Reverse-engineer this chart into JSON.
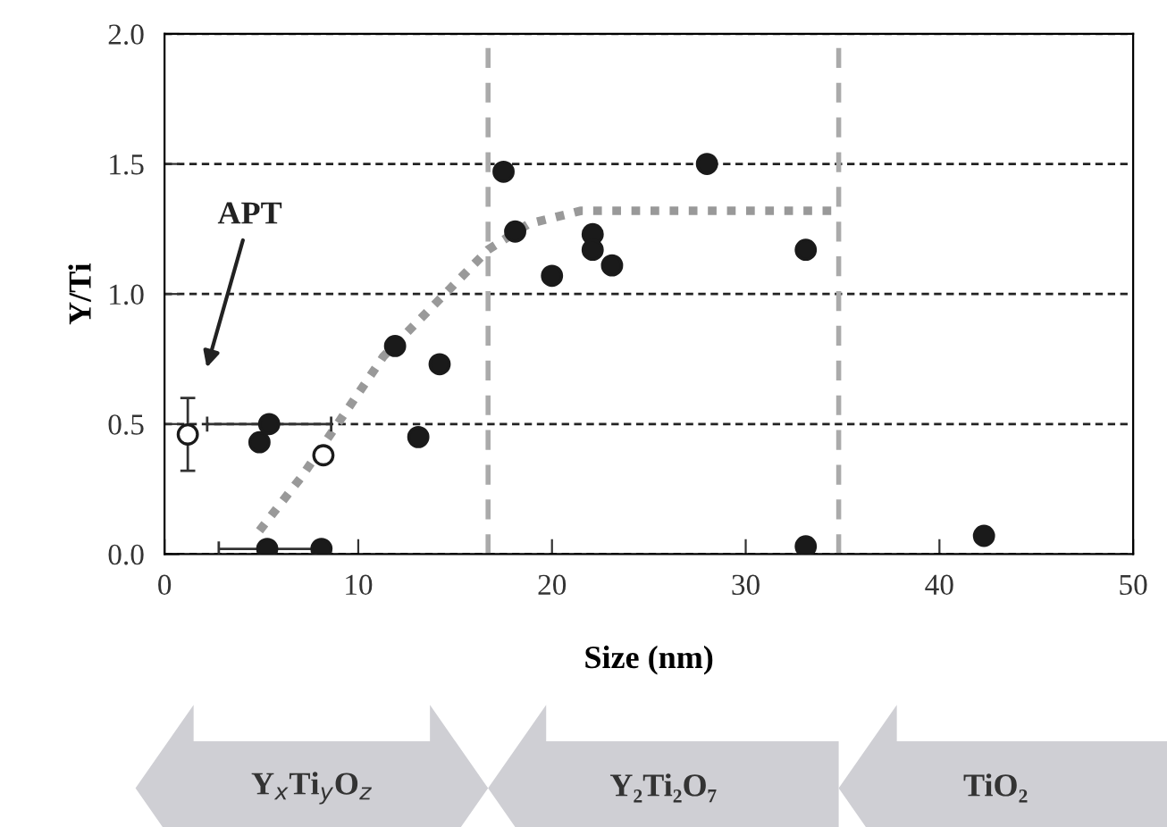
{
  "chart_data": {
    "type": "scatter",
    "xlabel": "Size (nm)",
    "ylabel": "Y/Ti",
    "xlim": [
      0,
      50
    ],
    "xticks": [
      0,
      10,
      20,
      30,
      40,
      50
    ],
    "ylim": [
      0,
      2.0
    ],
    "yticks": [
      {
        "value": 0,
        "label": "0.0"
      },
      {
        "value": 0.5,
        "label": "0.5"
      },
      {
        "value": 1.0,
        "label": "1.0"
      },
      {
        "value": 1.5,
        "label": "1.5"
      },
      {
        "value": 2.0,
        "label": "2.0"
      }
    ],
    "grid": "y",
    "series": [
      {
        "marker": "circle",
        "color": "#1a1a1a",
        "x": [
          4.9,
          5.4,
          5.3,
          8.1,
          11.9,
          14.2,
          13.1,
          17.5,
          18.1,
          20.0,
          22.1,
          22.1,
          23.1,
          28.0,
          33.1,
          33.1,
          42.3
        ],
        "values": [
          0.43,
          0.5,
          0.02,
          0.02,
          0.8,
          0.73,
          0.45,
          1.47,
          1.24,
          1.07,
          1.23,
          1.17,
          1.11,
          1.5,
          1.17,
          0.03,
          0.07
        ],
        "xerrors": [
          null,
          3.2,
          2.5,
          null,
          null,
          null,
          null,
          null,
          null,
          null,
          null,
          null,
          null,
          null,
          null,
          null,
          null
        ]
      },
      {
        "marker": "circle",
        "color": "#ffffff",
        "x": [
          1.2,
          8.2
        ],
        "values": [
          0.46,
          0.38
        ],
        "errors": [
          0.14,
          null
        ]
      },
      {
        "type": "line",
        "marker": "none",
        "color": "#999999",
        "line_style": "dotted",
        "x": [
          4.9,
          7.1,
          11.3,
          14.6,
          16.7,
          18.8,
          21.5,
          28.0,
          34.6
        ],
        "values": [
          0.09,
          0.3,
          0.76,
          1.01,
          1.17,
          1.27,
          1.32,
          1.32,
          1.32
        ]
      }
    ],
    "ref_lines": [
      {
        "axis": "x",
        "value": 16.7,
        "color": "#aaaaaa",
        "line_style": "dashed"
      },
      {
        "axis": "x",
        "value": 34.8,
        "color": "#aaaaaa",
        "line_style": "dashed"
      }
    ],
    "annotations": [
      "APT",
      "Y$_{x}$Ti$_{y}$O$_{z}$",
      "Y₂Ti₂O₇",
      "TiO₂"
    ]
  }
}
